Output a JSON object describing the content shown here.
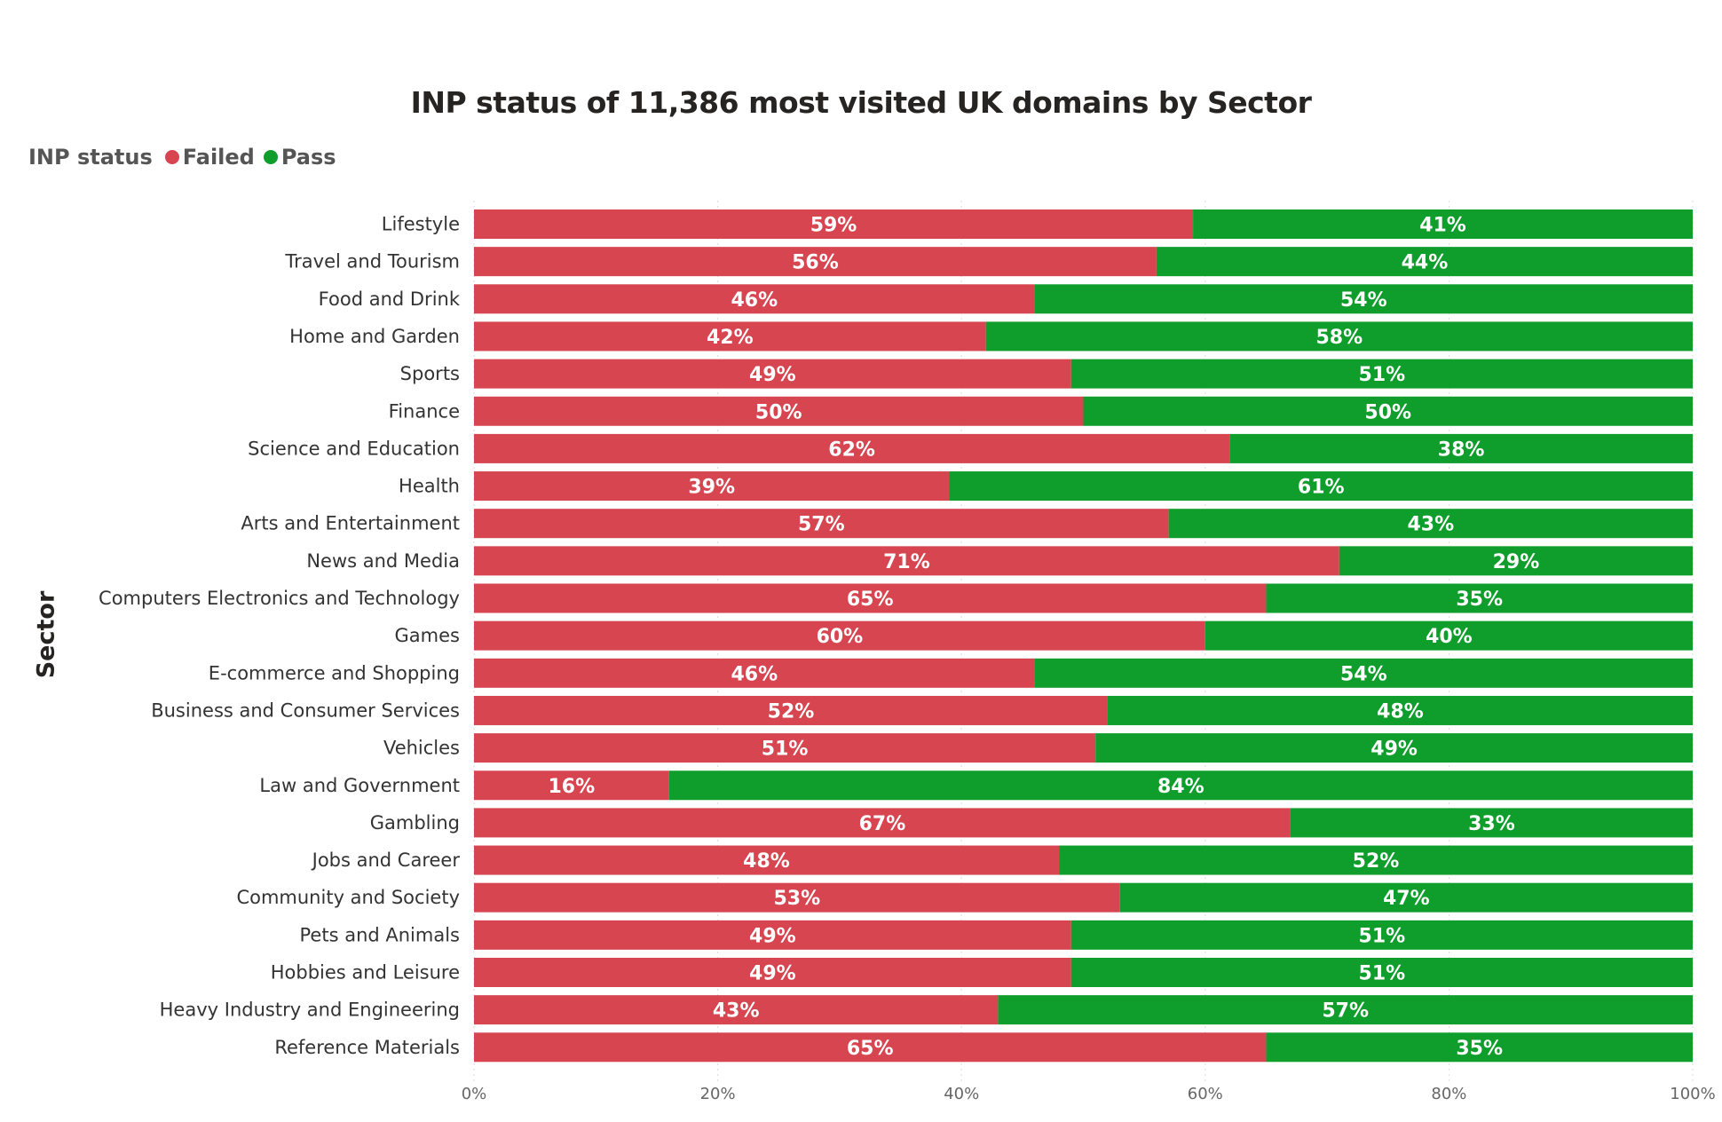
{
  "chart_data": {
    "type": "bar",
    "orientation": "horizontal",
    "stacked": "100%",
    "title": "INP status of 11,386 most visited UK domains by Sector",
    "ylabel": "Sector",
    "xlabel": "",
    "legend_title": "INP status",
    "legend_position": "top-left",
    "xlim": [
      0,
      100
    ],
    "x_ticks": [
      "0%",
      "20%",
      "40%",
      "60%",
      "80%",
      "100%"
    ],
    "grid": true,
    "categories": [
      "Lifestyle",
      "Travel and Tourism",
      "Food and Drink",
      "Home and Garden",
      "Sports",
      "Finance",
      "Science and Education",
      "Health",
      "Arts and Entertainment",
      "News and Media",
      "Computers Electronics and Technology",
      "Games",
      "E-commerce and Shopping",
      "Business and Consumer Services",
      "Vehicles",
      "Law and Government",
      "Gambling",
      "Jobs and Career",
      "Community and Society",
      "Pets and Animals",
      "Hobbies and Leisure",
      "Heavy Industry and Engineering",
      "Reference Materials"
    ],
    "series": [
      {
        "name": "Failed",
        "color": "#D64550",
        "values": [
          59,
          56,
          46,
          42,
          49,
          50,
          62,
          39,
          57,
          71,
          65,
          60,
          46,
          52,
          51,
          16,
          67,
          48,
          53,
          49,
          49,
          43,
          65
        ]
      },
      {
        "name": "Pass",
        "color": "#0F9D2B",
        "values": [
          41,
          44,
          54,
          58,
          51,
          50,
          38,
          61,
          43,
          29,
          35,
          40,
          54,
          48,
          49,
          84,
          33,
          52,
          47,
          51,
          51,
          57,
          35
        ]
      }
    ]
  }
}
